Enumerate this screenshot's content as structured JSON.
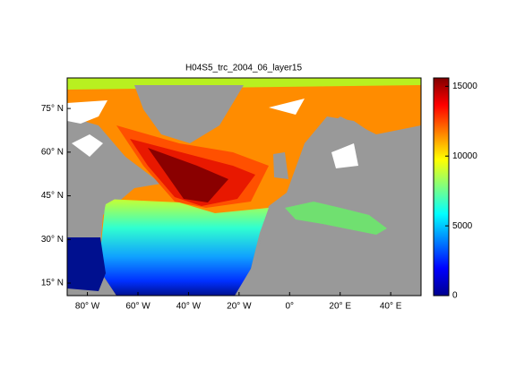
{
  "title": "H04S5_trc_2004_06_layer15",
  "map": {
    "lon_range": [
      -88,
      52
    ],
    "lat_range": [
      10.7,
      85.5
    ],
    "lon_ticks": [
      {
        "value": -80,
        "label": "80° W"
      },
      {
        "value": -60,
        "label": "60° W"
      },
      {
        "value": -40,
        "label": "40° W"
      },
      {
        "value": -20,
        "label": "20° W"
      },
      {
        "value": 0,
        "label": "0°"
      },
      {
        "value": 20,
        "label": "20° E"
      },
      {
        "value": 40,
        "label": "40° E"
      }
    ],
    "lat_ticks": [
      {
        "value": 15,
        "label": "15° N"
      },
      {
        "value": 30,
        "label": "30° N"
      },
      {
        "value": 45,
        "label": "45° N"
      },
      {
        "value": 60,
        "label": "60° N"
      },
      {
        "value": 75,
        "label": "75° N"
      }
    ]
  },
  "colorbar": {
    "range": [
      0,
      15600
    ],
    "ticks": [
      0,
      5000,
      10000,
      15000
    ],
    "colormap": "jet"
  }
}
